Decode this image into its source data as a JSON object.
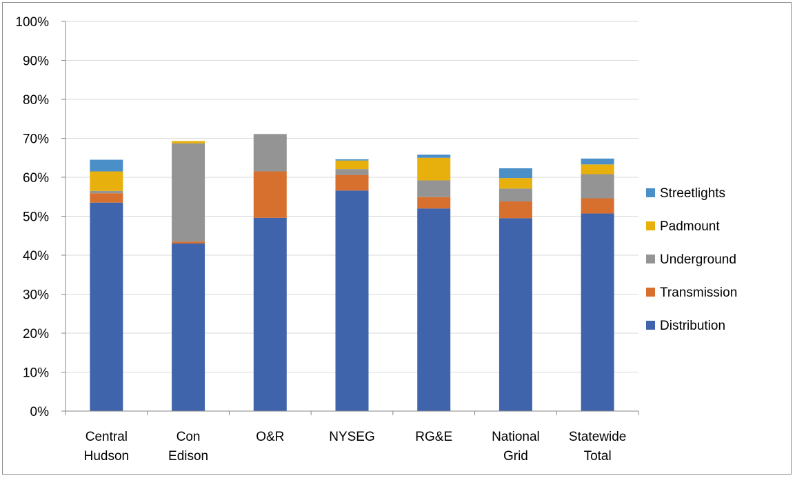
{
  "chart_data": {
    "type": "bar",
    "stacked": true,
    "categories": [
      [
        "Central",
        "Hudson"
      ],
      [
        "Con",
        "Edison"
      ],
      [
        "O&R"
      ],
      [
        "NYSEG"
      ],
      [
        "RG&E"
      ],
      [
        "National",
        "Grid"
      ],
      [
        "Statewide",
        "Total"
      ]
    ],
    "series": [
      {
        "name": "Distribution",
        "color": "#4064ac",
        "values": [
          53.5,
          43.0,
          49.6,
          56.6,
          52.0,
          49.5,
          50.7
        ]
      },
      {
        "name": "Transmission",
        "color": "#d7702e",
        "values": [
          2.4,
          0.5,
          11.9,
          4.0,
          2.9,
          4.3,
          3.9
        ]
      },
      {
        "name": "Underground",
        "color": "#949494",
        "values": [
          0.6,
          25.2,
          9.6,
          1.5,
          4.3,
          3.3,
          6.2
        ]
      },
      {
        "name": "Padmount",
        "color": "#e8b00c",
        "values": [
          5.0,
          0.6,
          0.0,
          2.2,
          5.8,
          2.7,
          2.5
        ]
      },
      {
        "name": "Streetlights",
        "color": "#4b8fc8",
        "values": [
          3.0,
          0.0,
          0.0,
          0.3,
          0.8,
          2.5,
          1.5
        ]
      }
    ],
    "ylim": [
      0,
      100
    ],
    "y_ticks": [
      "0%",
      "10%",
      "20%",
      "30%",
      "40%",
      "50%",
      "60%",
      "70%",
      "80%",
      "90%",
      "100%"
    ],
    "grid": "horizontal",
    "legend_position": "right",
    "title": "",
    "xlabel": "",
    "ylabel": ""
  }
}
